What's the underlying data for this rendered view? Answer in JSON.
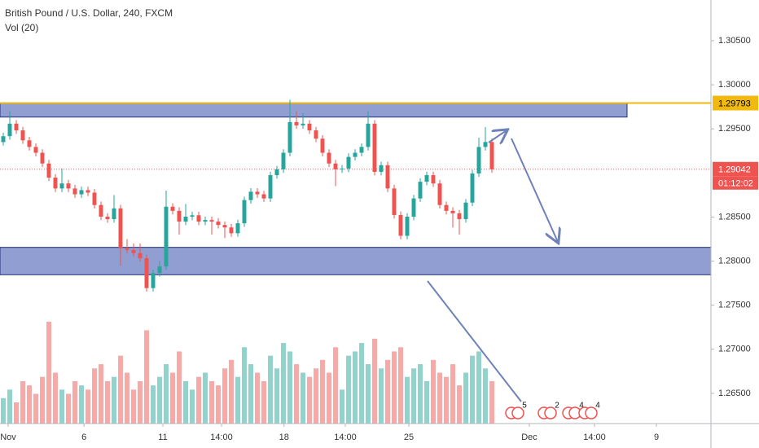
{
  "chart_data": {
    "type": "candlestick",
    "title": "British Pound / U.S. Dollar, 240, FXCM",
    "subtitle": "Vol (20)",
    "up_color": "#26a69a",
    "down_color": "#ef5350",
    "open": [
      1.2935,
      1.29417,
      1.29559,
      1.29483,
      1.2937,
      1.29295,
      1.29229,
      1.29107,
      1.28947,
      1.28824,
      1.28881,
      1.28824,
      1.28758,
      1.28805,
      1.28777,
      1.28636,
      1.28504,
      1.28476,
      1.28598,
      1.28146,
      1.28127,
      1.2809,
      1.28033,
      1.27694,
      1.27864,
      1.27939,
      1.28617,
      1.2857,
      1.28448,
      1.28504,
      1.2852,
      1.28448,
      1.28466,
      1.28448,
      1.2841,
      1.28382,
      1.28316,
      1.28429,
      1.28692,
      1.28787,
      1.28758,
      1.28711,
      1.28975,
      1.29041,
      1.29229,
      1.29577,
      1.2954,
      1.29559,
      1.29483,
      1.29389,
      1.29229,
      1.29107,
      1.29041,
      1.2905,
      1.29182,
      1.29229,
      1.29295,
      1.29559,
      1.29012,
      1.29088,
      1.28824,
      1.28523,
      1.28287,
      1.28504,
      1.28711,
      1.289,
      1.28975,
      1.28881,
      1.28636,
      1.2857,
      1.28542,
      1.28476,
      1.28664,
      1.28994,
      1.29295,
      1.29351
    ],
    "high": [
      1.29457,
      1.297,
      1.29599,
      1.29523,
      1.2941,
      1.29335,
      1.29269,
      1.29147,
      1.28987,
      1.2905,
      1.28921,
      1.28864,
      1.28845,
      1.28845,
      1.28817,
      1.28676,
      1.28544,
      1.2875,
      1.28638,
      1.2825,
      1.282,
      1.282,
      1.28073,
      1.27904,
      1.28,
      1.288,
      1.28657,
      1.2861,
      1.2865,
      1.2856,
      1.2856,
      1.28506,
      1.28506,
      1.28488,
      1.2845,
      1.28422,
      1.28469,
      1.28732,
      1.28827,
      1.28827,
      1.28798,
      1.29015,
      1.29081,
      1.29269,
      1.2983,
      1.297,
      1.2968,
      1.29599,
      1.29523,
      1.29429,
      1.29269,
      1.29147,
      1.2909,
      1.29222,
      1.29269,
      1.29335,
      1.297,
      1.29599,
      1.29128,
      1.29128,
      1.28864,
      1.28563,
      1.28544,
      1.28751,
      1.2894,
      1.29015,
      1.29015,
      1.28921,
      1.28676,
      1.2861,
      1.28582,
      1.28704,
      1.29034,
      1.294,
      1.2952,
      1.29391
    ],
    "low": [
      1.2931,
      1.29377,
      1.29443,
      1.2933,
      1.29255,
      1.29189,
      1.29067,
      1.28907,
      1.28784,
      1.28784,
      1.28784,
      1.28718,
      1.28718,
      1.28737,
      1.28596,
      1.28464,
      1.28436,
      1.28436,
      1.2795,
      1.28087,
      1.2805,
      1.27993,
      1.27654,
      1.27654,
      1.27824,
      1.27899,
      1.2853,
      1.283,
      1.28408,
      1.28464,
      1.28408,
      1.28408,
      1.283,
      1.2837,
      1.2826,
      1.28276,
      1.28276,
      1.28389,
      1.28652,
      1.28718,
      1.28671,
      1.28671,
      1.28935,
      1.29001,
      1.29189,
      1.295,
      1.295,
      1.29443,
      1.29349,
      1.29189,
      1.29067,
      1.2885,
      1.29001,
      1.2901,
      1.29142,
      1.29189,
      1.29255,
      1.28972,
      1.28972,
      1.28784,
      1.28483,
      1.28247,
      1.28247,
      1.28464,
      1.28671,
      1.2886,
      1.28841,
      1.28596,
      1.2853,
      1.2838,
      1.283,
      1.28436,
      1.28624,
      1.28954,
      1.29255,
      1.29002
    ],
    "close": [
      1.29417,
      1.29559,
      1.29483,
      1.2937,
      1.29295,
      1.29229,
      1.29107,
      1.28947,
      1.28824,
      1.28881,
      1.28824,
      1.28758,
      1.28805,
      1.28777,
      1.28636,
      1.28504,
      1.28476,
      1.28598,
      1.28146,
      1.28127,
      1.2809,
      1.28033,
      1.27694,
      1.27864,
      1.27939,
      1.28617,
      1.2857,
      1.28448,
      1.28504,
      1.2852,
      1.28448,
      1.28466,
      1.28448,
      1.2841,
      1.28382,
      1.28316,
      1.28429,
      1.28692,
      1.28787,
      1.28758,
      1.28711,
      1.28975,
      1.29041,
      1.29229,
      1.29577,
      1.2954,
      1.29559,
      1.29483,
      1.29389,
      1.29229,
      1.29107,
      1.29041,
      1.2905,
      1.29182,
      1.29229,
      1.29295,
      1.29559,
      1.29012,
      1.29088,
      1.28824,
      1.28523,
      1.28287,
      1.28504,
      1.28711,
      1.289,
      1.28975,
      1.28881,
      1.28636,
      1.2857,
      1.28542,
      1.28476,
      1.28664,
      1.28994,
      1.29295,
      1.29351,
      1.29042
    ],
    "volume": [
      30,
      40,
      25,
      50,
      45,
      35,
      55,
      120,
      60,
      40,
      35,
      50,
      45,
      40,
      65,
      70,
      50,
      55,
      80,
      60,
      40,
      50,
      110,
      45,
      55,
      70,
      60,
      85,
      50,
      40,
      55,
      60,
      50,
      45,
      65,
      75,
      55,
      90,
      70,
      60,
      50,
      80,
      65,
      95,
      85,
      70,
      60,
      55,
      65,
      75,
      60,
      90,
      40,
      80,
      85,
      95,
      70,
      100,
      65,
      75,
      85,
      90,
      55,
      65,
      70,
      50,
      75,
      60,
      55,
      70,
      45,
      60,
      80,
      85,
      65,
      50
    ],
    "last_label": "1.29042",
    "countdown": "01:12:02",
    "price_line": {
      "value": 1.29793,
      "label": "1.29793",
      "color": "#f0b90b"
    },
    "zones": [
      {
        "top": 1.29793,
        "bottom": 1.29634,
        "end": 95.75
      },
      {
        "top": 1.28156,
        "bottom": 1.27845,
        "end": 108.625
      }
    ],
    "events": [
      {
        "x": 79.25,
        "label": "5"
      },
      {
        "x": 84.25,
        "label": "2"
      },
      {
        "x": 88,
        "label": "4"
      },
      {
        "x": 90.5,
        "label": "4"
      }
    ],
    "ylim": [
      1.26157,
      1.30962
    ],
    "yticks": [
      {
        "value": 1.305,
        "label": "1.30500"
      },
      {
        "value": 1.3,
        "label": "1.30000"
      },
      {
        "value": 1.295,
        "label": "1.29500"
      },
      {
        "value": 1.285,
        "label": "1.28500"
      },
      {
        "value": 1.28,
        "label": "1.28000"
      },
      {
        "value": 1.275,
        "label": "1.27500"
      },
      {
        "value": 1.27,
        "label": "1.27000"
      },
      {
        "value": 1.265,
        "label": "1.26500"
      }
    ],
    "xlim": [
      -0.5,
      108.625
    ],
    "xticks": [
      {
        "value": 0.75,
        "label": "Nov"
      },
      {
        "value": 12.4,
        "label": "6"
      },
      {
        "value": 24.5,
        "label": "11"
      },
      {
        "value": 33.5,
        "label": "14:00"
      },
      {
        "value": 43.1,
        "label": "18"
      },
      {
        "value": 52.5,
        "label": "14:00"
      },
      {
        "value": 62.25,
        "label": "25"
      },
      {
        "value": 80.75,
        "label": "Dec"
      },
      {
        "value": 90.75,
        "label": "14:00"
      },
      {
        "value": 100.25,
        "label": "9"
      }
    ],
    "grid": false
  }
}
